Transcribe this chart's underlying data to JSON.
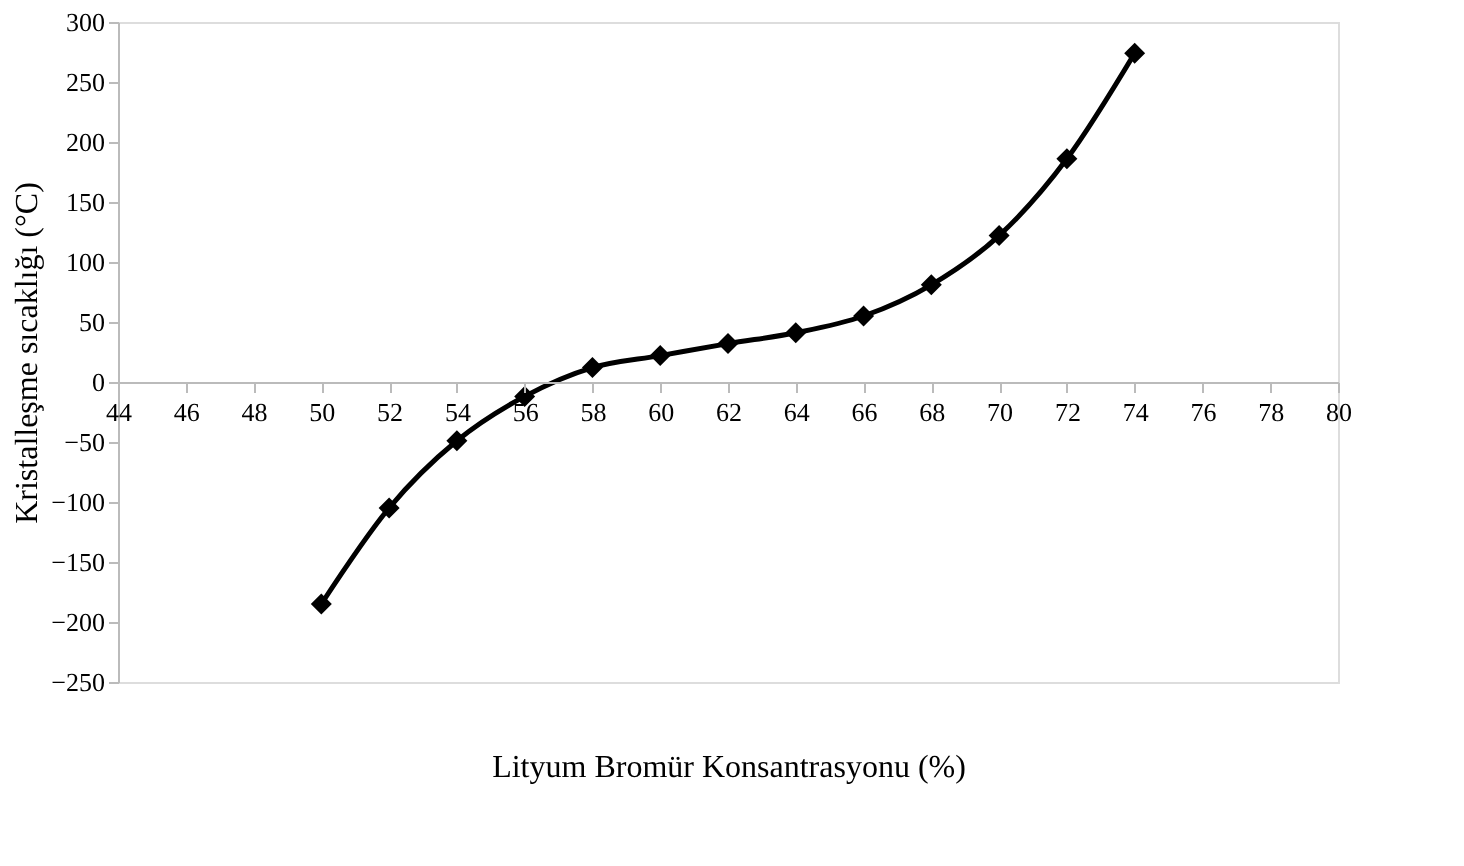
{
  "chart_data": {
    "type": "line",
    "xlabel": "Lityum Bromür Konsantrasyonu (%)",
    "ylabel": "Kristalleşme sıcaklığı (°C)",
    "x": [
      50,
      52,
      54,
      56,
      58,
      60,
      62,
      64,
      66,
      68,
      70,
      72,
      74
    ],
    "series": [
      {
        "color": "#000000",
        "values": [
          -185,
          -105,
          -49,
          -12,
          12,
          22,
          32,
          41,
          55,
          81,
          122,
          186,
          274
        ]
      }
    ],
    "xlim": [
      44,
      80
    ],
    "xticks": [
      44,
      46,
      48,
      50,
      52,
      54,
      56,
      58,
      60,
      62,
      64,
      66,
      68,
      70,
      72,
      74,
      76,
      78,
      80
    ],
    "ylim": [
      -250,
      300
    ],
    "yticks": [
      -250,
      -200,
      -150,
      -100,
      -50,
      0,
      50,
      100,
      150,
      200,
      250,
      300
    ],
    "grid": false,
    "marker": "diamond",
    "line_style": "solid"
  }
}
